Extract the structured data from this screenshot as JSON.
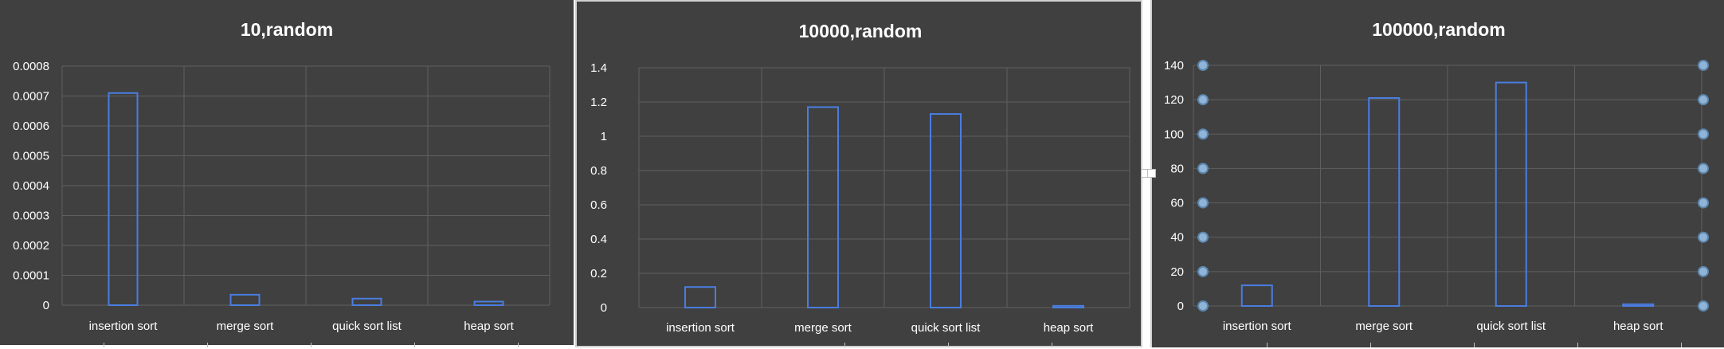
{
  "chart_data": [
    {
      "type": "bar",
      "title": "10,random",
      "categories": [
        "insertion sort",
        "merge sort",
        "quick sort list",
        "heap sort"
      ],
      "values": [
        0.00071,
        3.5e-05,
        2.2e-05,
        1.2e-05
      ],
      "ylim": [
        0,
        0.0008
      ],
      "yticks": [
        "0",
        "0.0001",
        "0.0002",
        "0.0003",
        "0.0004",
        "0.0005",
        "0.0006",
        "0.0007",
        "0.0008"
      ],
      "grid": true,
      "colors": {
        "bar_outline": "#4a7de0",
        "background": "#404040",
        "grid": "#5f5f5f",
        "text": "#ffffff"
      }
    },
    {
      "type": "bar",
      "title": "10000,random",
      "categories": [
        "insertion sort",
        "merge sort",
        "quick sort list",
        "heap sort"
      ],
      "values": [
        0.12,
        1.17,
        1.13,
        0.01
      ],
      "ylim": [
        0,
        1.4
      ],
      "yticks": [
        "0",
        "0.2",
        "0.4",
        "0.6",
        "0.8",
        "1",
        "1.2",
        "1.4"
      ],
      "grid": true,
      "colors": {
        "bar_outline": "#4a7de0",
        "background": "#404040",
        "grid": "#5f5f5f",
        "text": "#ffffff"
      }
    },
    {
      "type": "bar",
      "title": "100000,random",
      "categories": [
        "insertion sort",
        "merge sort",
        "quick sort list",
        "heap sort"
      ],
      "values": [
        12,
        121,
        130,
        1
      ],
      "ylim": [
        0,
        140
      ],
      "yticks": [
        "0",
        "20",
        "40",
        "60",
        "80",
        "100",
        "120",
        "140"
      ],
      "grid": true,
      "selected": true,
      "colors": {
        "bar_outline": "#4a7de0",
        "background": "#404040",
        "grid": "#5f5f5f",
        "text": "#ffffff",
        "handle": "#8fb4d8"
      }
    }
  ]
}
